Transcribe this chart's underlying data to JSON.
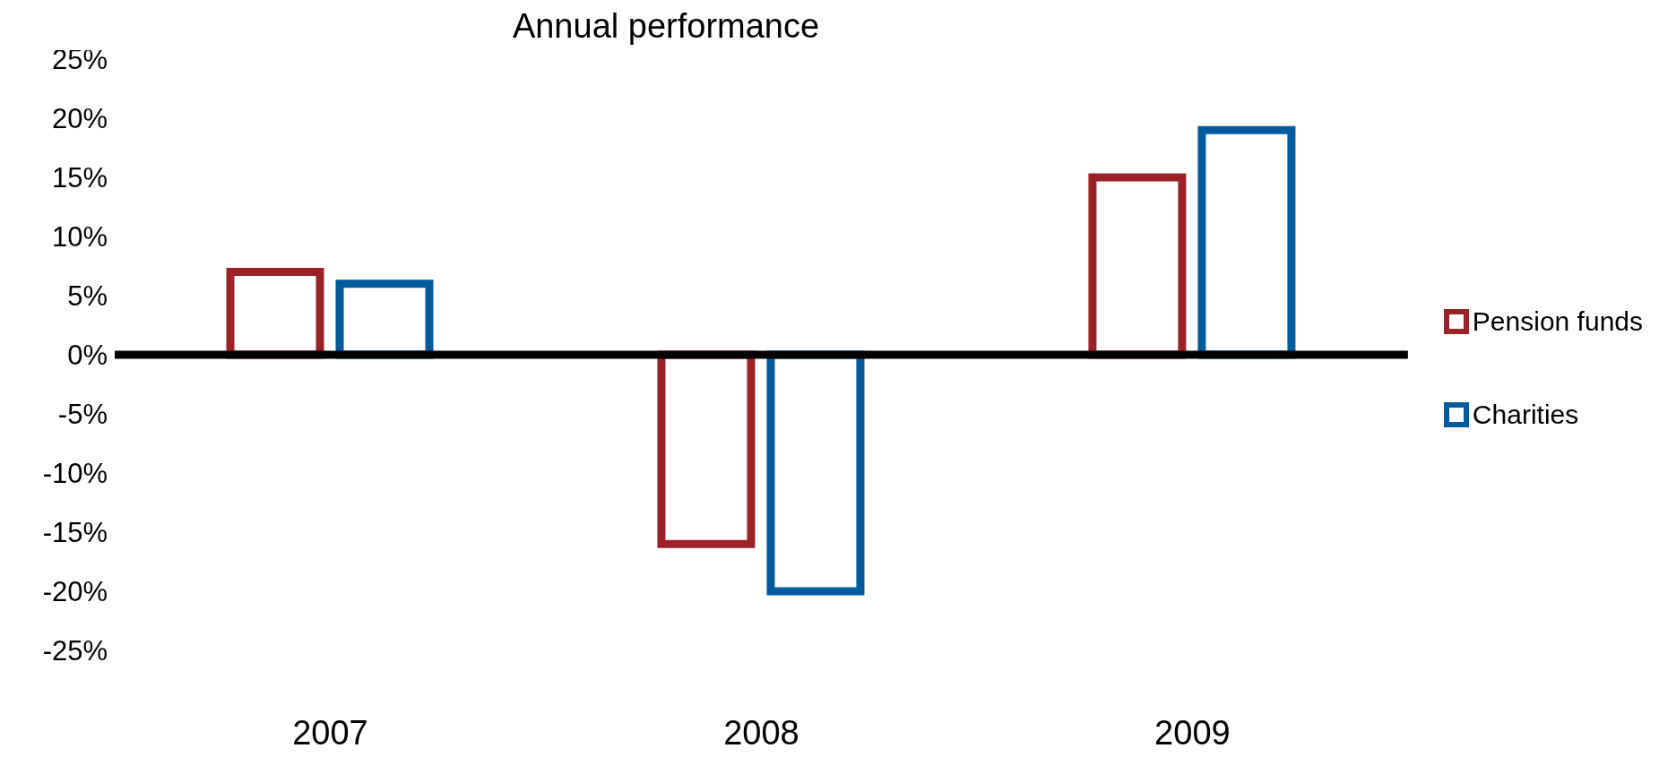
{
  "chart_data": {
    "type": "bar",
    "title": "Annual performance",
    "categories": [
      "2007",
      "2008",
      "2009"
    ],
    "series": [
      {
        "name": "Pension funds",
        "color": "#9b2226",
        "values": [
          7,
          -16,
          15
        ]
      },
      {
        "name": "Charities",
        "color": "#005a9c",
        "values": [
          6,
          -20,
          19
        ]
      }
    ],
    "ylim": [
      -25,
      25
    ],
    "yticks": [
      {
        "value": -25,
        "label": "-25%"
      },
      {
        "value": -20,
        "label": "-20%"
      },
      {
        "value": -15,
        "label": "-15%"
      },
      {
        "value": -10,
        "label": "-10%"
      },
      {
        "value": -5,
        "label": "-5%"
      },
      {
        "value": 0,
        "label": "0%"
      },
      {
        "value": 5,
        "label": "5%"
      },
      {
        "value": 10,
        "label": "10%"
      },
      {
        "value": 15,
        "label": "15%"
      },
      {
        "value": 20,
        "label": "20%"
      },
      {
        "value": 25,
        "label": "25%"
      }
    ],
    "ref_lines": [
      {
        "axis": "y",
        "value": 0,
        "color": "#000000"
      }
    ],
    "legend": "right"
  }
}
